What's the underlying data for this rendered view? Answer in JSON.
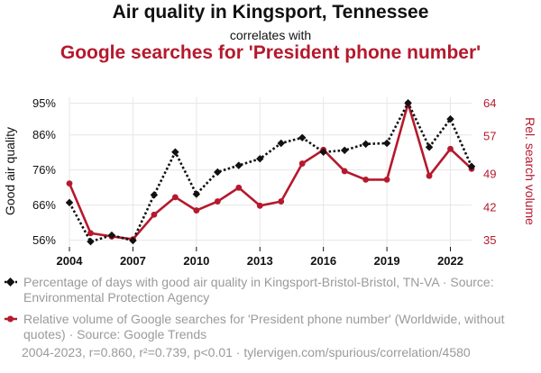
{
  "header": {
    "title": "Air quality in Kingsport, Tennessee",
    "subtitle": "correlates with",
    "title2": "Google searches for 'President phone number'"
  },
  "colors": {
    "series1": "#111111",
    "series2": "#b5192d",
    "grid": "#e6e6e6",
    "muted": "#9a9a9a"
  },
  "chart_data": {
    "type": "line",
    "x": [
      2004,
      2005,
      2006,
      2007,
      2008,
      2009,
      2010,
      2011,
      2012,
      2013,
      2014,
      2015,
      2016,
      2017,
      2018,
      2019,
      2020,
      2021,
      2022,
      2023
    ],
    "x_ticks": [
      2004,
      2007,
      2010,
      2013,
      2016,
      2019,
      2022
    ],
    "xlim": [
      2004,
      2023
    ],
    "series": [
      {
        "name": "Percentage of days with good air quality in Kingsport-Bristol-Bristol, TN-VA",
        "axis": "left",
        "style": "dotted-black-diamond",
        "values": [
          66.7,
          55.6,
          57.4,
          55.9,
          68.9,
          81.1,
          69.1,
          75.4,
          77.3,
          79.2,
          83.6,
          85.2,
          81.1,
          81.6,
          83.4,
          83.6,
          95.1,
          82.5,
          90.5,
          77.0
        ]
      },
      {
        "name": "Relative volume of Google searches for 'President phone number'",
        "axis": "right",
        "style": "solid-red-circle",
        "values": [
          47,
          36.5,
          35.8,
          35.2,
          40.4,
          44.1,
          41.3,
          43.2,
          46.1,
          42.3,
          43.2,
          51.2,
          54.1,
          49.6,
          47.8,
          47.8,
          63.9,
          48.6,
          54.3,
          50.1
        ]
      }
    ],
    "ylim_left": [
      54.1,
      96.7
    ],
    "ylim_right": [
      33.6,
      65.2
    ],
    "yticks_left": [
      56,
      66,
      76,
      86,
      95
    ],
    "yticks_left_labels": [
      "56%",
      "66%",
      "76%",
      "86%",
      "95%"
    ],
    "yticks_right": [
      35,
      42,
      49,
      57,
      64
    ],
    "ylabel_left": "Good air quality",
    "ylabel_right": "Rel. search volume"
  },
  "legend": [
    {
      "text": "Percentage of days with good air quality in Kingsport-Bristol-Bristol, TN-VA · Source: Environmental Protection Agency"
    },
    {
      "text": "Relative volume of Google searches for 'President phone number' (Worldwide, without quotes) · Source: Google Trends"
    }
  ],
  "footer": "2004-2023, r=0.860, r²=0.739, p<0.01 · tylervigen.com/spurious/correlation/4580"
}
